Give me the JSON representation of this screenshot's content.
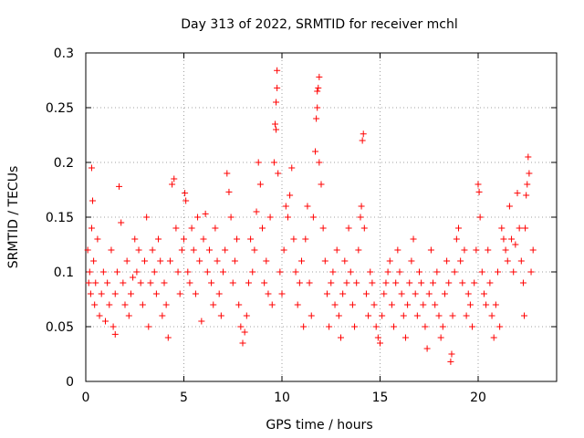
{
  "chart_data": {
    "type": "scatter",
    "title": "Day 313 of 2022, SRMTID for receiver mchl",
    "xlabel": "GPS time / hours",
    "ylabel": "SRMTID / TECUs",
    "xlim": [
      0,
      24
    ],
    "ylim": [
      0,
      0.3
    ],
    "xticks": [
      0,
      5,
      10,
      15,
      20
    ],
    "xtick_labels": [
      "0",
      "5",
      "10",
      "15",
      "20"
    ],
    "yticks": [
      0,
      0.05,
      0.1,
      0.15,
      0.2,
      0.25,
      0.3
    ],
    "ytick_labels": [
      "0",
      "0.05",
      "0.1",
      "0.15",
      "0.2",
      "0.25",
      "0.3"
    ],
    "grid": true,
    "marker": "+",
    "color": "#ff0000",
    "series": [
      {
        "name": "SRMTID",
        "points": [
          [
            0.1,
            0.12
          ],
          [
            0.15,
            0.09
          ],
          [
            0.2,
            0.1
          ],
          [
            0.25,
            0.08
          ],
          [
            0.3,
            0.14
          ],
          [
            0.3,
            0.195
          ],
          [
            0.35,
            0.165
          ],
          [
            0.4,
            0.11
          ],
          [
            0.45,
            0.07
          ],
          [
            0.5,
            0.09
          ],
          [
            0.6,
            0.13
          ],
          [
            0.7,
            0.06
          ],
          [
            0.8,
            0.08
          ],
          [
            0.9,
            0.1
          ],
          [
            1.0,
            0.055
          ],
          [
            1.1,
            0.09
          ],
          [
            1.2,
            0.07
          ],
          [
            1.3,
            0.12
          ],
          [
            1.4,
            0.05
          ],
          [
            1.5,
            0.043
          ],
          [
            1.5,
            0.08
          ],
          [
            1.6,
            0.1
          ],
          [
            1.7,
            0.178
          ],
          [
            1.8,
            0.145
          ],
          [
            1.9,
            0.09
          ],
          [
            2.0,
            0.07
          ],
          [
            2.1,
            0.11
          ],
          [
            2.2,
            0.06
          ],
          [
            2.3,
            0.08
          ],
          [
            2.4,
            0.095
          ],
          [
            2.5,
            0.13
          ],
          [
            2.6,
            0.1
          ],
          [
            2.7,
            0.12
          ],
          [
            2.8,
            0.09
          ],
          [
            2.9,
            0.07
          ],
          [
            3.0,
            0.11
          ],
          [
            3.1,
            0.15
          ],
          [
            3.2,
            0.05
          ],
          [
            3.3,
            0.09
          ],
          [
            3.4,
            0.12
          ],
          [
            3.5,
            0.1
          ],
          [
            3.6,
            0.08
          ],
          [
            3.7,
            0.13
          ],
          [
            3.8,
            0.11
          ],
          [
            3.9,
            0.06
          ],
          [
            4.0,
            0.09
          ],
          [
            4.1,
            0.07
          ],
          [
            4.2,
            0.04
          ],
          [
            4.3,
            0.11
          ],
          [
            4.4,
            0.18
          ],
          [
            4.5,
            0.185
          ],
          [
            4.6,
            0.14
          ],
          [
            4.7,
            0.1
          ],
          [
            4.8,
            0.08
          ],
          [
            4.9,
            0.12
          ],
          [
            5.0,
            0.13
          ],
          [
            5.05,
            0.172
          ],
          [
            5.1,
            0.165
          ],
          [
            5.2,
            0.1
          ],
          [
            5.3,
            0.09
          ],
          [
            5.4,
            0.14
          ],
          [
            5.5,
            0.12
          ],
          [
            5.6,
            0.08
          ],
          [
            5.7,
            0.15
          ],
          [
            5.8,
            0.11
          ],
          [
            5.9,
            0.055
          ],
          [
            6.0,
            0.13
          ],
          [
            6.1,
            0.153
          ],
          [
            6.2,
            0.1
          ],
          [
            6.3,
            0.12
          ],
          [
            6.4,
            0.09
          ],
          [
            6.5,
            0.07
          ],
          [
            6.6,
            0.14
          ],
          [
            6.7,
            0.11
          ],
          [
            6.8,
            0.08
          ],
          [
            6.9,
            0.06
          ],
          [
            7.0,
            0.1
          ],
          [
            7.1,
            0.12
          ],
          [
            7.2,
            0.19
          ],
          [
            7.3,
            0.173
          ],
          [
            7.4,
            0.15
          ],
          [
            7.5,
            0.09
          ],
          [
            7.6,
            0.11
          ],
          [
            7.7,
            0.13
          ],
          [
            7.8,
            0.07
          ],
          [
            7.9,
            0.05
          ],
          [
            8.0,
            0.035
          ],
          [
            8.1,
            0.045
          ],
          [
            8.2,
            0.06
          ],
          [
            8.3,
            0.09
          ],
          [
            8.4,
            0.13
          ],
          [
            8.5,
            0.1
          ],
          [
            8.6,
            0.12
          ],
          [
            8.7,
            0.155
          ],
          [
            8.8,
            0.2
          ],
          [
            8.9,
            0.18
          ],
          [
            9.0,
            0.14
          ],
          [
            9.1,
            0.09
          ],
          [
            9.2,
            0.11
          ],
          [
            9.3,
            0.08
          ],
          [
            9.4,
            0.15
          ],
          [
            9.5,
            0.07
          ],
          [
            9.6,
            0.2
          ],
          [
            9.65,
            0.235
          ],
          [
            9.7,
            0.23
          ],
          [
            9.7,
            0.255
          ],
          [
            9.75,
            0.268
          ],
          [
            9.75,
            0.284
          ],
          [
            9.8,
            0.19
          ],
          [
            9.9,
            0.1
          ],
          [
            10.0,
            0.08
          ],
          [
            10.1,
            0.12
          ],
          [
            10.2,
            0.16
          ],
          [
            10.3,
            0.15
          ],
          [
            10.4,
            0.17
          ],
          [
            10.5,
            0.195
          ],
          [
            10.6,
            0.13
          ],
          [
            10.7,
            0.1
          ],
          [
            10.8,
            0.07
          ],
          [
            10.9,
            0.09
          ],
          [
            11.0,
            0.11
          ],
          [
            11.1,
            0.05
          ],
          [
            11.2,
            0.13
          ],
          [
            11.3,
            0.16
          ],
          [
            11.4,
            0.09
          ],
          [
            11.5,
            0.06
          ],
          [
            11.6,
            0.15
          ],
          [
            11.7,
            0.21
          ],
          [
            11.75,
            0.24
          ],
          [
            11.8,
            0.25
          ],
          [
            11.8,
            0.265
          ],
          [
            11.85,
            0.268
          ],
          [
            11.9,
            0.278
          ],
          [
            11.9,
            0.2
          ],
          [
            12.0,
            0.18
          ],
          [
            12.1,
            0.14
          ],
          [
            12.2,
            0.11
          ],
          [
            12.3,
            0.08
          ],
          [
            12.4,
            0.05
          ],
          [
            12.5,
            0.09
          ],
          [
            12.6,
            0.1
          ],
          [
            12.7,
            0.07
          ],
          [
            12.8,
            0.12
          ],
          [
            12.9,
            0.06
          ],
          [
            13.0,
            0.04
          ],
          [
            13.1,
            0.08
          ],
          [
            13.2,
            0.11
          ],
          [
            13.3,
            0.09
          ],
          [
            13.4,
            0.14
          ],
          [
            13.5,
            0.1
          ],
          [
            13.6,
            0.07
          ],
          [
            13.7,
            0.05
          ],
          [
            13.8,
            0.09
          ],
          [
            13.9,
            0.12
          ],
          [
            14.0,
            0.15
          ],
          [
            14.05,
            0.16
          ],
          [
            14.1,
            0.22
          ],
          [
            14.15,
            0.226
          ],
          [
            14.2,
            0.14
          ],
          [
            14.3,
            0.08
          ],
          [
            14.4,
            0.06
          ],
          [
            14.5,
            0.1
          ],
          [
            14.6,
            0.09
          ],
          [
            14.7,
            0.07
          ],
          [
            14.8,
            0.05
          ],
          [
            14.9,
            0.04
          ],
          [
            15.0,
            0.035
          ],
          [
            15.1,
            0.06
          ],
          [
            15.2,
            0.08
          ],
          [
            15.3,
            0.09
          ],
          [
            15.4,
            0.1
          ],
          [
            15.5,
            0.11
          ],
          [
            15.6,
            0.07
          ],
          [
            15.7,
            0.05
          ],
          [
            15.8,
            0.09
          ],
          [
            15.9,
            0.12
          ],
          [
            16.0,
            0.1
          ],
          [
            16.1,
            0.08
          ],
          [
            16.2,
            0.06
          ],
          [
            16.3,
            0.04
          ],
          [
            16.4,
            0.07
          ],
          [
            16.5,
            0.09
          ],
          [
            16.6,
            0.11
          ],
          [
            16.7,
            0.13
          ],
          [
            16.8,
            0.08
          ],
          [
            16.9,
            0.06
          ],
          [
            17.0,
            0.1
          ],
          [
            17.1,
            0.09
          ],
          [
            17.2,
            0.07
          ],
          [
            17.3,
            0.05
          ],
          [
            17.4,
            0.03
          ],
          [
            17.5,
            0.08
          ],
          [
            17.6,
            0.12
          ],
          [
            17.7,
            0.09
          ],
          [
            17.8,
            0.07
          ],
          [
            17.9,
            0.1
          ],
          [
            18.0,
            0.06
          ],
          [
            18.1,
            0.04
          ],
          [
            18.2,
            0.05
          ],
          [
            18.3,
            0.08
          ],
          [
            18.4,
            0.11
          ],
          [
            18.5,
            0.09
          ],
          [
            18.6,
            0.018
          ],
          [
            18.65,
            0.025
          ],
          [
            18.7,
            0.06
          ],
          [
            18.8,
            0.1
          ],
          [
            18.9,
            0.13
          ],
          [
            19.0,
            0.14
          ],
          [
            19.1,
            0.11
          ],
          [
            19.2,
            0.09
          ],
          [
            19.3,
            0.12
          ],
          [
            19.4,
            0.06
          ],
          [
            19.5,
            0.08
          ],
          [
            19.6,
            0.07
          ],
          [
            19.7,
            0.05
          ],
          [
            19.8,
            0.09
          ],
          [
            19.9,
            0.12
          ],
          [
            20.0,
            0.18
          ],
          [
            20.05,
            0.173
          ],
          [
            20.1,
            0.15
          ],
          [
            20.2,
            0.1
          ],
          [
            20.3,
            0.08
          ],
          [
            20.4,
            0.07
          ],
          [
            20.5,
            0.12
          ],
          [
            20.6,
            0.09
          ],
          [
            20.7,
            0.06
          ],
          [
            20.8,
            0.04
          ],
          [
            20.9,
            0.07
          ],
          [
            21.0,
            0.1
          ],
          [
            21.1,
            0.05
          ],
          [
            21.2,
            0.14
          ],
          [
            21.3,
            0.13
          ],
          [
            21.4,
            0.12
          ],
          [
            21.5,
            0.11
          ],
          [
            21.6,
            0.16
          ],
          [
            21.7,
            0.13
          ],
          [
            21.8,
            0.1
          ],
          [
            21.9,
            0.125
          ],
          [
            22.0,
            0.172
          ],
          [
            22.1,
            0.14
          ],
          [
            22.2,
            0.11
          ],
          [
            22.3,
            0.09
          ],
          [
            22.35,
            0.06
          ],
          [
            22.4,
            0.14
          ],
          [
            22.45,
            0.17
          ],
          [
            22.5,
            0.18
          ],
          [
            22.55,
            0.205
          ],
          [
            22.6,
            0.19
          ],
          [
            22.7,
            0.1
          ],
          [
            22.8,
            0.12
          ]
        ]
      }
    ]
  }
}
